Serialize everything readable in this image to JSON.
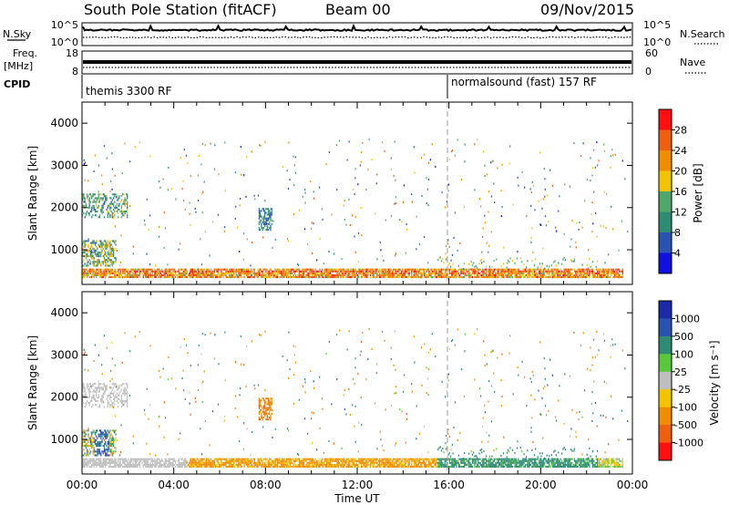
{
  "header": {
    "station": "South Pole Station (fitACF)",
    "beam": "Beam 00",
    "date": "09/Nov/2015"
  },
  "strip_sky": {
    "left_label": "N.Sky",
    "left_ticks": [
      "10^5",
      "10^0"
    ],
    "right_label": "N.Search",
    "right_ticks": [
      "10^5",
      "10^0"
    ]
  },
  "strip_freq": {
    "left_label_1": "Freq.",
    "left_label_2": "[MHz]",
    "left_ticks": [
      "18",
      "8"
    ],
    "right_label": "Nave",
    "right_ticks": [
      "60",
      "0"
    ]
  },
  "cpid": {
    "label": "CPID",
    "modes": [
      {
        "name": "themis 3300 RF",
        "start_hour": 0
      },
      {
        "name": "normalsound (fast) 157 RF",
        "start_hour": 16
      }
    ]
  },
  "power_panel": {
    "ylabel": "Slant Range [km]",
    "yticks": [
      "1000",
      "2000",
      "3000",
      "4000"
    ],
    "colorbar_title": "Power [dB]",
    "colorbar_ticks": [
      "4",
      "8",
      "12",
      "16",
      "20",
      "24",
      "28"
    ]
  },
  "velocity_panel": {
    "ylabel": "Slant Range [km]",
    "yticks": [
      "1000",
      "2000",
      "3000",
      "4000"
    ],
    "colorbar_title": "Velocity [m s⁻¹]",
    "colorbar_ticks": [
      "-1000",
      "-500",
      "-100",
      "-25",
      "25",
      "100",
      "500",
      "1000"
    ]
  },
  "xaxis": {
    "title": "Time UT",
    "ticks": [
      "00:00",
      "04:00",
      "08:00",
      "12:00",
      "16:00",
      "20:00",
      "00:00"
    ]
  },
  "colors": {
    "power_scale": [
      "#1010e0",
      "#2a52b0",
      "#2e8b74",
      "#4fa86a",
      "#f2c300",
      "#f08c00",
      "#ee6010",
      "#ff1010"
    ],
    "velocity_scale": [
      "#ff1010",
      "#ee6010",
      "#f08c00",
      "#f2c300",
      "#bebebe",
      "#5ac83c",
      "#2e8b74",
      "#2a52b0",
      "#1a2aa8"
    ]
  },
  "chart_data": [
    {
      "type": "heatmap",
      "title": "Power",
      "xlabel": "Time UT",
      "ylabel": "Slant Range [km]",
      "xlim_hours": [
        0,
        24
      ],
      "ylim_km": [
        180,
        4500
      ],
      "value_range_db": [
        0,
        30
      ],
      "grid": false,
      "features": [
        {
          "t_start_h": 0.0,
          "t_end_h": 23.6,
          "range_start_km": 330,
          "range_end_km": 520,
          "typical_db": 22
        },
        {
          "t_start_h": 0.0,
          "t_end_h": 1.5,
          "range_start_km": 600,
          "range_end_km": 1200,
          "typical_db": 12
        },
        {
          "t_start_h": 0.0,
          "t_end_h": 2.0,
          "range_start_km": 1750,
          "range_end_km": 2300,
          "typical_db": 10
        },
        {
          "t_start_h": 7.7,
          "t_end_h": 8.3,
          "range_start_km": 1450,
          "range_end_km": 1950,
          "typical_db": 9
        }
      ]
    },
    {
      "type": "heatmap",
      "title": "Velocity",
      "xlabel": "Time UT",
      "ylabel": "Slant Range [km]",
      "xlim_hours": [
        0,
        24
      ],
      "ylim_km": [
        180,
        4500
      ],
      "value_range_ms": [
        -1000,
        1000
      ],
      "grid": false,
      "features": [
        {
          "t_start_h": 0.0,
          "t_end_h": 2.0,
          "range_start_km": 1750,
          "range_end_km": 2300,
          "typical_ms": 0
        },
        {
          "t_start_h": 0.5,
          "t_end_h": 1.2,
          "range_start_km": 500,
          "range_end_km": 1150,
          "typical_ms": 600
        },
        {
          "t_start_h": 4.5,
          "t_end_h": 15.0,
          "range_start_km": 330,
          "range_end_km": 620,
          "typical_ms": -150
        },
        {
          "t_start_h": 15.5,
          "t_end_h": 22.5,
          "range_start_km": 330,
          "range_end_km": 800,
          "typical_ms": 200
        },
        {
          "t_start_h": 7.7,
          "t_end_h": 8.3,
          "range_start_km": 1450,
          "range_end_km": 1950,
          "typical_ms": -400
        }
      ]
    }
  ]
}
